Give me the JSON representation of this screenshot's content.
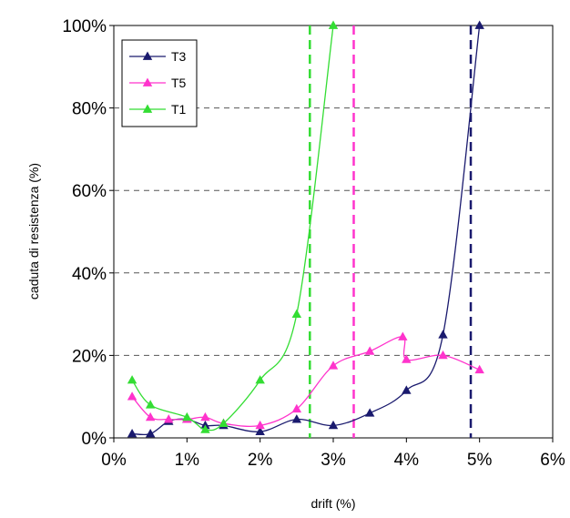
{
  "chart_data": {
    "type": "line",
    "title": "",
    "xlabel": "drift (%)",
    "ylabel": "caduta di resistenza (%)",
    "xlim": [
      0,
      6
    ],
    "ylim": [
      0,
      100
    ],
    "x_ticks": [
      0,
      1,
      2,
      3,
      4,
      5,
      6
    ],
    "y_ticks": [
      0,
      20,
      40,
      60,
      80,
      100
    ],
    "x_tick_labels": [
      "0%",
      "1%",
      "2%",
      "3%",
      "4%",
      "5%",
      "6%"
    ],
    "y_tick_labels": [
      "0%",
      "20%",
      "40%",
      "60%",
      "80%",
      "100%"
    ],
    "grid": "horizontal dashed",
    "legend_position": "top-left",
    "series": [
      {
        "name": "T3",
        "color": "#1a1a6e",
        "marker": "triangle",
        "x": [
          0.25,
          0.5,
          0.75,
          1.0,
          1.25,
          1.5,
          2.0,
          2.5,
          3.0,
          3.5,
          4.0,
          4.5,
          5.0
        ],
        "y": [
          1,
          1,
          4,
          4.5,
          3,
          3,
          1.5,
          4.5,
          3,
          6,
          11.5,
          25,
          100
        ]
      },
      {
        "name": "T5",
        "color": "#ff33cc",
        "marker": "triangle",
        "x": [
          0.25,
          0.5,
          0.75,
          1.0,
          1.25,
          1.5,
          2.0,
          2.5,
          3.0,
          3.5,
          3.95,
          4.0,
          4.5,
          5.0
        ],
        "y": [
          10,
          5,
          4.5,
          4.5,
          5,
          3.5,
          3,
          7,
          17.5,
          21,
          24.5,
          19,
          20,
          16.5
        ]
      },
      {
        "name": "T1",
        "color": "#33dd33",
        "marker": "triangle",
        "x": [
          0.25,
          0.5,
          1.0,
          1.25,
          1.5,
          2.0,
          2.5,
          3.0
        ],
        "y": [
          14,
          8,
          5,
          2,
          3.5,
          14,
          30,
          100
        ]
      }
    ],
    "vertical_lines": [
      {
        "x": 2.68,
        "color": "#33dd33",
        "style": "dashed"
      },
      {
        "x": 3.28,
        "color": "#ff33cc",
        "style": "dashed"
      },
      {
        "x": 4.88,
        "color": "#1a1a6e",
        "style": "dashed"
      }
    ]
  }
}
